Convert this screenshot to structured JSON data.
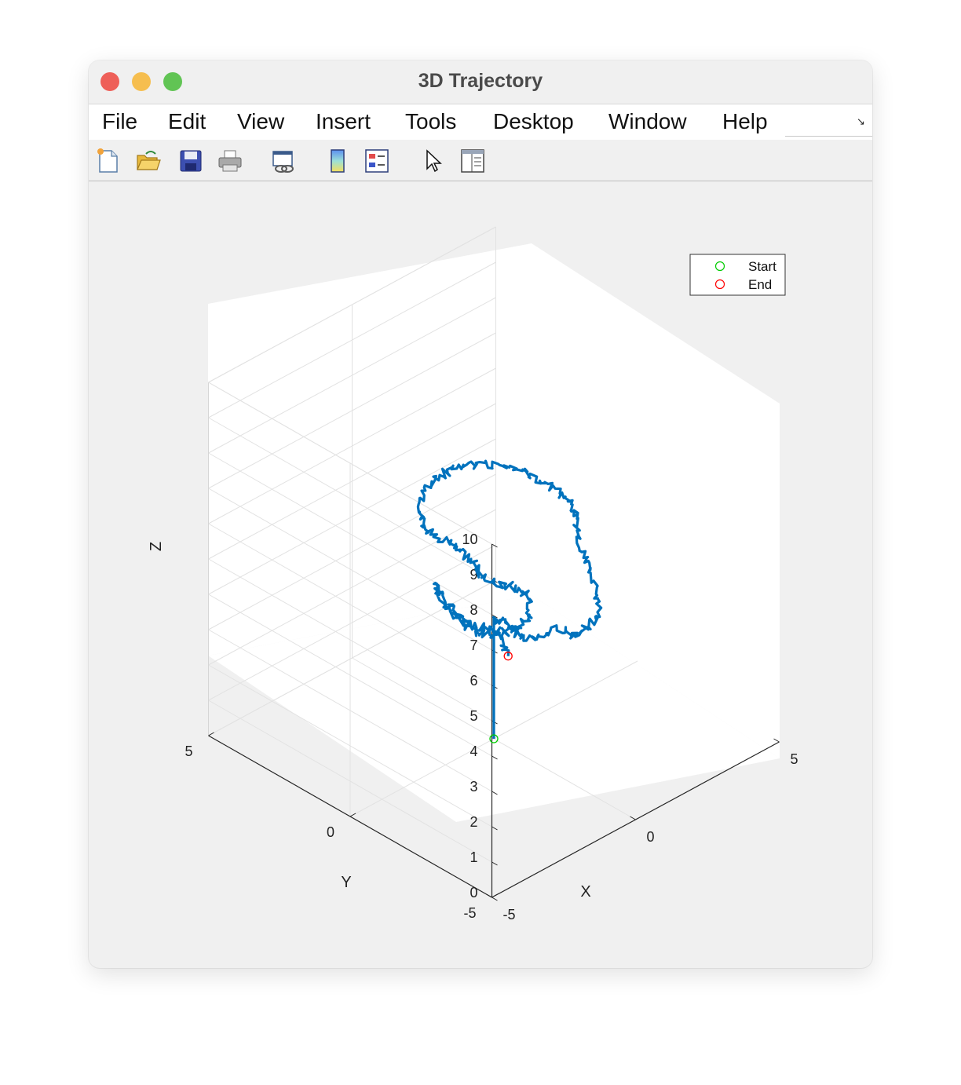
{
  "window": {
    "title": "3D Trajectory"
  },
  "menu": [
    "File",
    "Edit",
    "View",
    "Insert",
    "Tools",
    "Desktop",
    "Window",
    "Help"
  ],
  "toolbar": [
    {
      "name": "new-figure-icon"
    },
    {
      "name": "open-file-icon"
    },
    {
      "name": "save-icon"
    },
    {
      "name": "print-icon"
    },
    {
      "name": "link-plot-icon"
    },
    {
      "name": "colorbar-icon"
    },
    {
      "name": "legend-icon"
    },
    {
      "name": "edit-plot-pointer-icon"
    },
    {
      "name": "property-inspector-icon"
    }
  ],
  "chart_data": {
    "type": "line3d",
    "xlabel": "X",
    "ylabel": "Y",
    "zlabel": "Z",
    "xlim": [
      -5,
      5
    ],
    "ylim": [
      -5,
      5
    ],
    "zlim": [
      0,
      10
    ],
    "x_ticks": [
      "-5",
      "0",
      "5"
    ],
    "y_ticks": [
      "-5",
      "0",
      "5"
    ],
    "z_ticks": [
      "0",
      "1",
      "2",
      "3",
      "4",
      "5",
      "6",
      "7",
      "8",
      "9",
      "10"
    ],
    "grid": true,
    "legend_position": "top-right",
    "legend": [
      {
        "label": "Start",
        "color": "#00cc00",
        "marker": "circle"
      },
      {
        "label": "End",
        "color": "#ff0000",
        "marker": "circle"
      }
    ],
    "series_color": "#0072bd",
    "trajectory": [
      [
        0,
        0,
        0
      ],
      [
        0,
        0,
        1.1
      ],
      [
        0,
        0,
        2.3
      ],
      [
        0,
        0,
        3.4
      ],
      [
        0.3,
        -0.1,
        3.2
      ],
      [
        0.6,
        -0.3,
        2.8
      ],
      [
        1.0,
        -0.5,
        2.6
      ],
      [
        1.4,
        -0.8,
        2.9
      ],
      [
        1.8,
        -1.0,
        2.6
      ],
      [
        2.2,
        -1.1,
        2.7
      ],
      [
        2.5,
        -1.2,
        2.9
      ],
      [
        2.6,
        -1.0,
        3.6
      ],
      [
        2.5,
        -0.8,
        4.3
      ],
      [
        2.3,
        -0.6,
        4.8
      ],
      [
        2.4,
        -0.5,
        5.4
      ],
      [
        2.2,
        -0.5,
        5.9
      ],
      [
        2.0,
        -0.3,
        6.2
      ],
      [
        1.6,
        0.0,
        6.6
      ],
      [
        1.2,
        0.2,
        7.0
      ],
      [
        0.6,
        0.4,
        7.3
      ],
      [
        0,
        0.6,
        7.5
      ],
      [
        -0.5,
        0.8,
        7.5
      ],
      [
        -0.9,
        1.0,
        7.4
      ],
      [
        -1.2,
        1.2,
        7.0
      ],
      [
        -1.3,
        1.3,
        6.4
      ],
      [
        -1.2,
        1.2,
        5.9
      ],
      [
        -0.9,
        1.0,
        5.6
      ],
      [
        -0.5,
        0.8,
        5.3
      ],
      [
        -0.2,
        0.6,
        4.9
      ],
      [
        -0.1,
        0.3,
        4.5
      ],
      [
        0.1,
        0.1,
        4.3
      ],
      [
        0.4,
        -0.1,
        4.2
      ],
      [
        0.7,
        -0.3,
        4.0
      ],
      [
        0.9,
        -0.4,
        3.7
      ],
      [
        0.8,
        -0.4,
        3.2
      ],
      [
        0.5,
        -0.2,
        3.0
      ],
      [
        0.1,
        0,
        2.9
      ],
      [
        -0.3,
        0.2,
        3.0
      ],
      [
        -0.6,
        0.4,
        3.3
      ],
      [
        -0.9,
        0.6,
        3.7
      ],
      [
        -1.1,
        0.8,
        4.2
      ],
      [
        -1.2,
        0.9,
        4.5
      ],
      [
        -1.0,
        0.7,
        4.0
      ],
      [
        -0.8,
        0.5,
        3.6
      ],
      [
        -0.5,
        0.3,
        3.3
      ],
      [
        -0.2,
        0.1,
        3.2
      ],
      [
        0.1,
        -0.1,
        3.0
      ],
      [
        0.3,
        -0.2,
        2.3
      ]
    ],
    "start": [
      0,
      0,
      0
    ],
    "end": [
      0.3,
      -0.2,
      2.3
    ]
  }
}
